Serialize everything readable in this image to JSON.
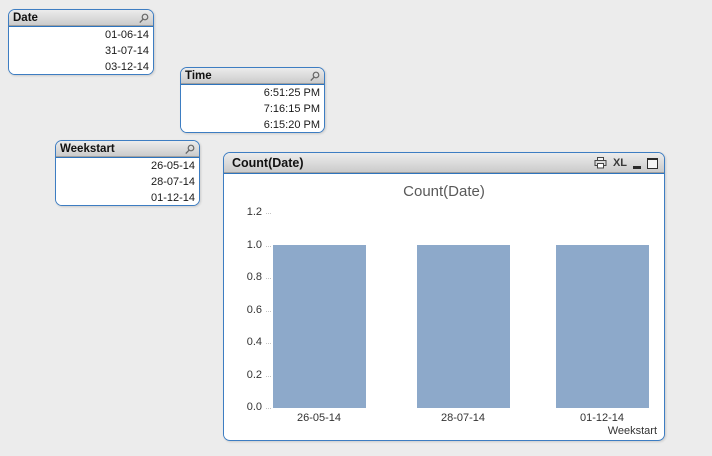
{
  "page": {
    "background": "#ececec"
  },
  "listboxes": [
    {
      "title": "Date",
      "values": [
        "01-06-14",
        "31-07-14",
        "03-12-14"
      ]
    },
    {
      "title": "Time",
      "values": [
        "6:51:25 PM",
        "7:16:15 PM",
        "6:15:20 PM"
      ]
    },
    {
      "title": "Weekstart",
      "values": [
        "26-05-14",
        "28-07-14",
        "01-12-14"
      ]
    }
  ],
  "chart_window": {
    "caption_title": "Count(Date)",
    "excel_button_label": "XL"
  },
  "chart_data": {
    "type": "bar",
    "title": "Count(Date)",
    "categories": [
      "26-05-14",
      "28-07-14",
      "01-12-14"
    ],
    "values": [
      1,
      1,
      1
    ],
    "xlabel": "Weekstart",
    "ylabel": "",
    "ylim": [
      0,
      1.2
    ],
    "yticks": [
      0.0,
      0.2,
      0.4,
      0.6,
      0.8,
      1.0,
      1.2
    ],
    "ytick_labels": [
      "0.0",
      "0.2",
      "0.4",
      "0.6",
      "0.8",
      "1.0",
      "1.2"
    ],
    "bar_color": "#8da9ca",
    "grid": false,
    "legend": false
  },
  "colors": {
    "object_border": "#3d7dc2",
    "bar_fill": "#8da9ca",
    "caption_text": "#111111",
    "chart_title_text": "#595959"
  }
}
